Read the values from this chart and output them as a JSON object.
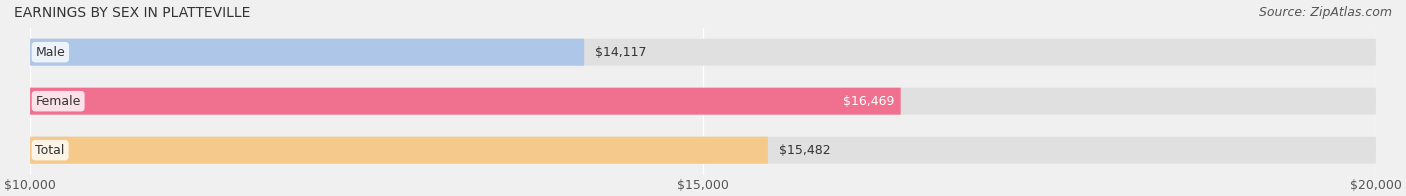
{
  "title": "EARNINGS BY SEX IN PLATTEVILLE",
  "source": "Source: ZipAtlas.com",
  "categories": [
    "Male",
    "Female",
    "Total"
  ],
  "values": [
    14117,
    16469,
    15482
  ],
  "bar_colors": [
    "#aec6e8",
    "#f07090",
    "#f5c98a"
  ],
  "bg_color": "#f0f0f0",
  "bar_bg_color": "#e0e0e0",
  "xlim": [
    10000,
    20000
  ],
  "xticks": [
    10000,
    15000,
    20000
  ],
  "xtick_labels": [
    "$10,000",
    "$15,000",
    "$20,000"
  ],
  "title_fontsize": 10,
  "source_fontsize": 9,
  "label_fontsize": 9,
  "tick_fontsize": 9,
  "value_inside": [
    false,
    true,
    false
  ]
}
